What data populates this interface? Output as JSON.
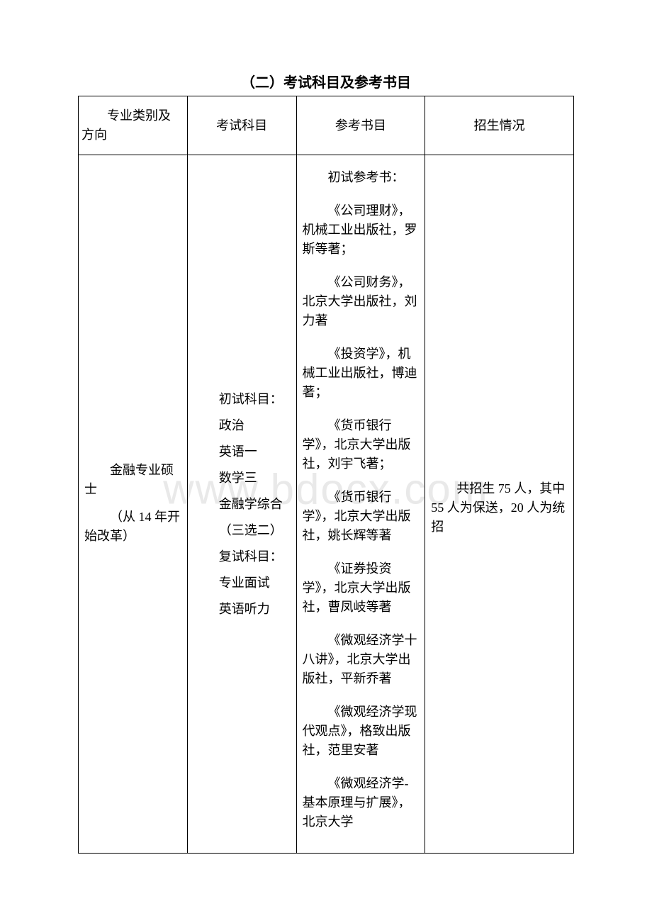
{
  "title": "（二）考试科目及参考书目",
  "watermark": "www.bdocx.com",
  "table": {
    "headers": {
      "major": "专业类别及方向",
      "subject": "考试科目",
      "reference": "参考书目",
      "enroll": "招生情况"
    },
    "row": {
      "major_p1": "金融专业硕士",
      "major_p2": "（从 14 年开始改革）",
      "subject_p1": "初试科目：",
      "subject_p2": "政治",
      "subject_p3": "英语一",
      "subject_p4": "数学三",
      "subject_p5": "金融学综合",
      "subject_p6": "（三选二）",
      "subject_p7": "复试科目：",
      "subject_p8": "专业面试",
      "subject_p9": "英语听力",
      "ref_p1": "初试参考书：",
      "ref_p2": "《公司理财》，机械工业出版社，罗斯等著；",
      "ref_p3": "《公司财务》，北京大学出版社，刘力著",
      "ref_p4": "《投资学》，机械工业出版社，博迪著；",
      "ref_p5": "《货币银行学》，北京大学出版社，刘宇飞著；",
      "ref_p6": "《货币银行学》，北京大学出版社，姚长辉等著",
      "ref_p7": "《证券投资学》，北京大学出版社，曹凤岐等著",
      "ref_p8": "《微观经济学十八讲》，北京大学出版社，平新乔著",
      "ref_p9": "《微观经济学现代观点》，格致出版社，范里安著",
      "ref_p10": "《微观经济学-基本原理与扩展》，北京大学",
      "enroll_p1": "共招生 75 人，其中 55 人为保送，20 人为统招"
    }
  }
}
